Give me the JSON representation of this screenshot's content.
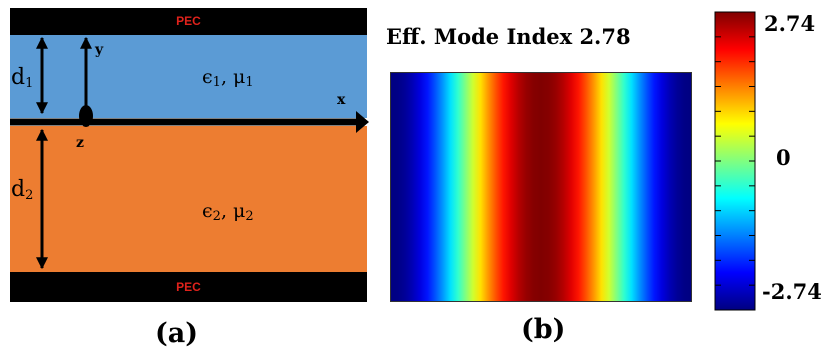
{
  "panel_a": {
    "pec_top_label": "PEC",
    "pec_bottom_label": "PEC",
    "layer1": {
      "eps": "ϵ",
      "eps_sub": "1",
      "sep": ", ",
      "mu": "μ",
      "mu_sub": "1"
    },
    "layer2": {
      "eps": "ϵ",
      "eps_sub": "2",
      "sep": ", ",
      "mu": "μ",
      "mu_sub": "2"
    },
    "thickness1": {
      "base": "d",
      "sub": "1"
    },
    "thickness2": {
      "base": "d",
      "sub": "2"
    },
    "axis_x": "x",
    "axis_y": "y",
    "axis_z": "z",
    "caption": "(a)",
    "colors": {
      "layer1": "#5b9bd5",
      "layer2": "#ed7d31",
      "pec": "#000000",
      "pec_text": "#e0221b"
    }
  },
  "panel_b": {
    "title": "Eff. Mode Index 2.78",
    "caption": "(b)",
    "field_profile": {
      "colormap": "jet",
      "profile": "cosine",
      "variation_direction": "horizontal",
      "peak_position": "center"
    }
  },
  "colorbar": {
    "max_label": "2.74",
    "mid_label": "0",
    "min_label": "-2.74",
    "colormap": "jet"
  }
}
